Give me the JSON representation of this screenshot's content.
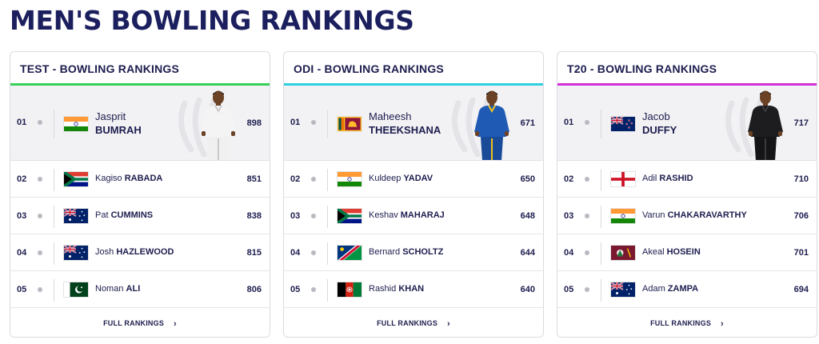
{
  "page_title": "MEN'S BOWLING RANKINGS",
  "cards": [
    {
      "heading": "TEST - BOWLING RANKINGS",
      "accent": "#36d159",
      "players": [
        {
          "rank": "01",
          "first": "Jasprit",
          "surname": "BUMRAH",
          "rating": "898",
          "country": "india"
        },
        {
          "rank": "02",
          "first": "Kagiso",
          "surname": "RABADA",
          "rating": "851",
          "country": "south-africa"
        },
        {
          "rank": "03",
          "first": "Pat",
          "surname": "CUMMINS",
          "rating": "838",
          "country": "australia"
        },
        {
          "rank": "04",
          "first": "Josh",
          "surname": "HAZLEWOOD",
          "rating": "815",
          "country": "australia"
        },
        {
          "rank": "05",
          "first": "Noman",
          "surname": "ALI",
          "rating": "806",
          "country": "pakistan"
        }
      ],
      "player_kit": "white",
      "full_rankings_label": "FULL RANKINGS"
    },
    {
      "heading": "ODI - BOWLING RANKINGS",
      "accent": "#2fd0e0",
      "players": [
        {
          "rank": "01",
          "first": "Maheesh",
          "surname": "THEEKSHANA",
          "rating": "671",
          "country": "sri-lanka"
        },
        {
          "rank": "02",
          "first": "Kuldeep",
          "surname": "YADAV",
          "rating": "650",
          "country": "india"
        },
        {
          "rank": "03",
          "first": "Keshav",
          "surname": "MAHARAJ",
          "rating": "648",
          "country": "south-africa"
        },
        {
          "rank": "04",
          "first": "Bernard",
          "surname": "SCHOLTZ",
          "rating": "644",
          "country": "namibia"
        },
        {
          "rank": "05",
          "first": "Rashid",
          "surname": "KHAN",
          "rating": "640",
          "country": "afghanistan"
        }
      ],
      "player_kit": "blue",
      "full_rankings_label": "FULL RANKINGS"
    },
    {
      "heading": "T20 - BOWLING RANKINGS",
      "accent": "#d42fd6",
      "players": [
        {
          "rank": "01",
          "first": "Jacob",
          "surname": "DUFFY",
          "rating": "717",
          "country": "new-zealand"
        },
        {
          "rank": "02",
          "first": "Adil",
          "surname": "RASHID",
          "rating": "710",
          "country": "england"
        },
        {
          "rank": "03",
          "first": "Varun",
          "surname": "CHAKARAVARTHY",
          "rating": "706",
          "country": "india"
        },
        {
          "rank": "04",
          "first": "Akeal",
          "surname": "HOSEIN",
          "rating": "701",
          "country": "west-indies"
        },
        {
          "rank": "05",
          "first": "Adam",
          "surname": "ZAMPA",
          "rating": "694",
          "country": "australia"
        }
      ],
      "player_kit": "black",
      "full_rankings_label": "FULL RANKINGS"
    }
  ],
  "chevron_icon": "chevron-right-icon"
}
